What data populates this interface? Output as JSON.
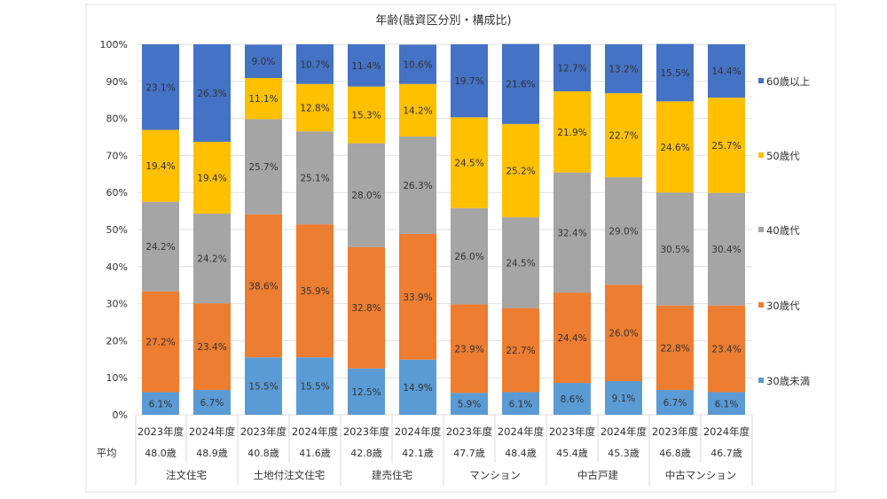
{
  "chart_data": {
    "type": "bar",
    "stacked": true,
    "title": "年齢(融資区分別・構成比)",
    "ylim": [
      0,
      100
    ],
    "yticks": [
      "0%",
      "10%",
      "20%",
      "30%",
      "40%",
      "50%",
      "60%",
      "70%",
      "80%",
      "90%",
      "100%"
    ],
    "grid": true,
    "legend_placement": "right",
    "categories": [
      "2023年度",
      "2024年度",
      "2023年度",
      "2024年度",
      "2023年度",
      "2024年度",
      "2023年度",
      "2024年度",
      "2023年度",
      "2024年度",
      "2023年度",
      "2024年度"
    ],
    "groups": [
      "注文住宅",
      "土地付注文住宅",
      "建売住宅",
      "マンション",
      "中古戸建",
      "中古マンション"
    ],
    "average_label": "平均",
    "averages": [
      "48.0歳",
      "48.9歳",
      "40.8歳",
      "41.6歳",
      "42.8歳",
      "42.1歳",
      "47.7歳",
      "48.4歳",
      "45.4歳",
      "45.3歳",
      "46.8歳",
      "46.7歳"
    ],
    "series": [
      {
        "name": "30歳未満",
        "color": "#5B9BD5",
        "values": [
          6.1,
          6.7,
          15.5,
          15.5,
          12.5,
          14.9,
          5.9,
          6.1,
          8.6,
          9.1,
          6.7,
          6.1
        ]
      },
      {
        "name": "30歳代",
        "color": "#ED7D31",
        "values": [
          27.2,
          23.4,
          38.6,
          35.9,
          32.8,
          33.9,
          23.9,
          22.7,
          24.4,
          26.0,
          22.8,
          23.4
        ]
      },
      {
        "name": "40歳代",
        "color": "#A5A5A5",
        "values": [
          24.2,
          24.2,
          25.7,
          25.1,
          28.0,
          26.3,
          26.0,
          24.5,
          32.4,
          29.0,
          30.5,
          30.4
        ]
      },
      {
        "name": "50歳代",
        "color": "#FFC000",
        "values": [
          19.4,
          19.4,
          11.1,
          12.8,
          15.3,
          14.2,
          24.5,
          25.2,
          21.9,
          22.7,
          24.6,
          25.7
        ]
      },
      {
        "name": "60歳以上",
        "color": "#4472C4",
        "values": [
          23.1,
          26.3,
          9.0,
          10.7,
          11.4,
          10.6,
          19.7,
          21.6,
          12.7,
          13.2,
          15.5,
          14.4
        ]
      }
    ]
  }
}
